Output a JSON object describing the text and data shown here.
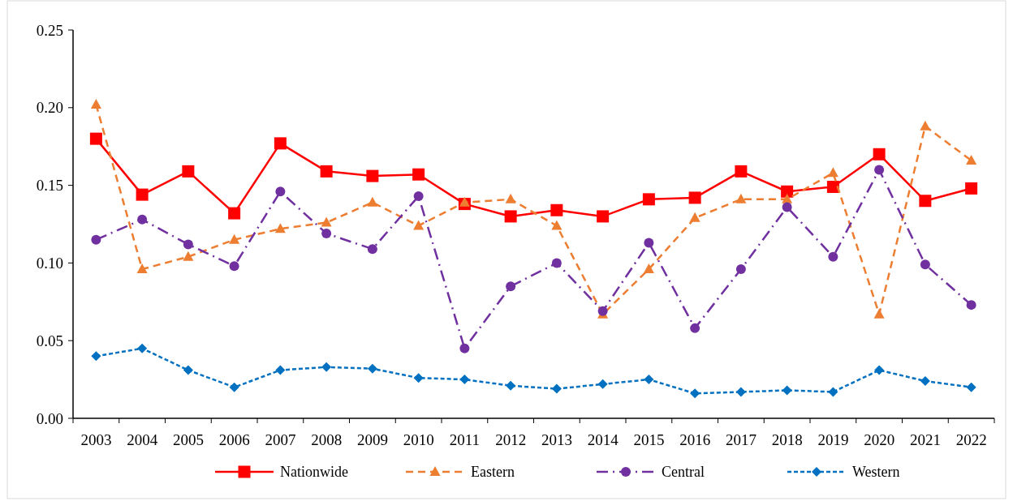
{
  "chart_data": {
    "type": "line",
    "categories": [
      "2003",
      "2004",
      "2005",
      "2006",
      "2007",
      "2008",
      "2009",
      "2010",
      "2011",
      "2012",
      "2013",
      "2014",
      "2015",
      "2016",
      "2017",
      "2018",
      "2019",
      "2020",
      "2021",
      "2022"
    ],
    "series": [
      {
        "name": "Nationwide",
        "color": "#ff0000",
        "marker": "square",
        "line_style": "solid",
        "values": [
          0.18,
          0.144,
          0.159,
          0.132,
          0.177,
          0.159,
          0.156,
          0.157,
          0.138,
          0.13,
          0.134,
          0.13,
          0.141,
          0.142,
          0.159,
          0.146,
          0.149,
          0.17,
          0.14,
          0.148
        ]
      },
      {
        "name": "Eastern",
        "color": "#ed7d31",
        "marker": "triangle",
        "line_style": "dashed",
        "values": [
          0.202,
          0.096,
          0.104,
          0.115,
          0.122,
          0.126,
          0.139,
          0.124,
          0.139,
          0.141,
          0.124,
          0.067,
          0.096,
          0.129,
          0.141,
          0.141,
          0.158,
          0.067,
          0.188,
          0.166
        ]
      },
      {
        "name": "Central",
        "color": "#7030a0",
        "marker": "circle",
        "line_style": "dashdot",
        "values": [
          0.115,
          0.128,
          0.112,
          0.098,
          0.146,
          0.119,
          0.109,
          0.143,
          0.045,
          0.085,
          0.1,
          0.069,
          0.113,
          0.058,
          0.096,
          0.136,
          0.104,
          0.16,
          0.099,
          0.073
        ]
      },
      {
        "name": "Western",
        "color": "#0070c0",
        "marker": "diamond",
        "line_style": "dotted",
        "values": [
          0.04,
          0.045,
          0.031,
          0.02,
          0.031,
          0.033,
          0.032,
          0.026,
          0.025,
          0.021,
          0.019,
          0.022,
          0.025,
          0.016,
          0.017,
          0.018,
          0.017,
          0.031,
          0.024,
          0.02
        ]
      }
    ],
    "ylim": [
      0,
      0.25
    ],
    "yticks": [
      {
        "value": 0,
        "label": "0.00"
      },
      {
        "value": 0.05,
        "label": "0.05"
      },
      {
        "value": 0.1,
        "label": "0.10"
      },
      {
        "value": 0.15,
        "label": "0.15"
      },
      {
        "value": 0.2,
        "label": "0.20"
      },
      {
        "value": 0.25,
        "label": "0.25"
      }
    ],
    "grid": false,
    "legend": "bottom"
  }
}
